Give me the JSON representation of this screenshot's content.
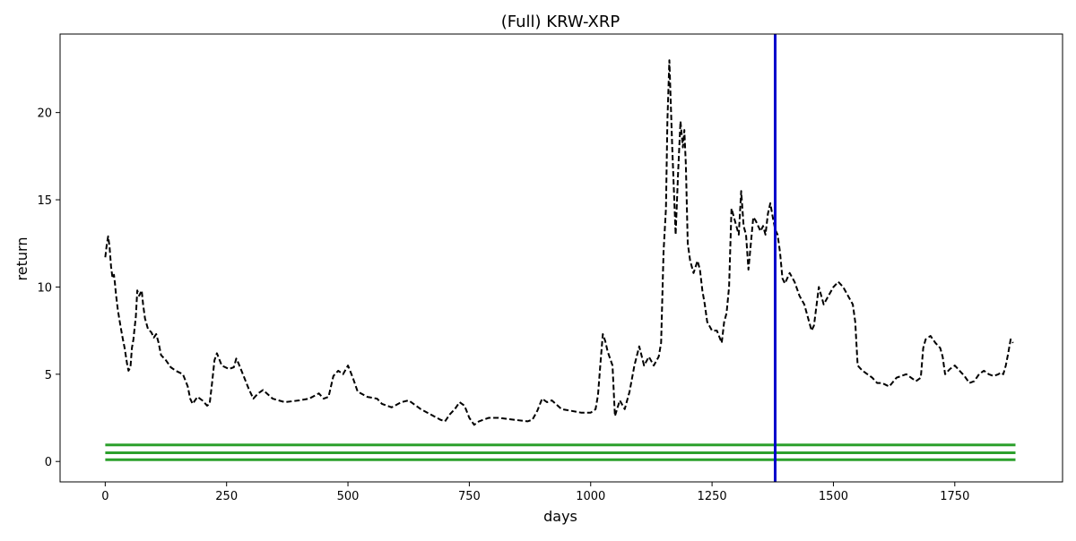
{
  "chart_data": {
    "type": "line",
    "title": "(Full) KRW-XRP",
    "xlabel": "days",
    "ylabel": "return",
    "xlim": [
      -93,
      1972
    ],
    "ylim": [
      -1.17,
      24.5
    ],
    "x_ticks": [
      0,
      250,
      500,
      750,
      1000,
      1250,
      1500,
      1750
    ],
    "y_ticks": [
      0,
      5,
      10,
      15,
      20
    ],
    "grid": false,
    "legend": "none",
    "series": [
      {
        "style": "dashed",
        "color": "#000000",
        "x": [
          0,
          3,
          6,
          9,
          12,
          15,
          18,
          20,
          22,
          26,
          30,
          35,
          40,
          45,
          48,
          52,
          55,
          58,
          60,
          63,
          66,
          70,
          75,
          78,
          82,
          88,
          95,
          100,
          105,
          110,
          115,
          125,
          135,
          145,
          160,
          170,
          175,
          180,
          190,
          200,
          210,
          215,
          220,
          225,
          230,
          240,
          255,
          265,
          270,
          275,
          285,
          295,
          305,
          315,
          325,
          345,
          370,
          400,
          420,
          440,
          450,
          460,
          470,
          480,
          490,
          500,
          510,
          520,
          540,
          560,
          570,
          590,
          610,
          625,
          650,
          670,
          690,
          700,
          710,
          720,
          730,
          740,
          750,
          760,
          770,
          790,
          810,
          840,
          870,
          880,
          890,
          900,
          910,
          920,
          940,
          960,
          980,
          1000,
          1010,
          1015,
          1020,
          1025,
          1030,
          1035,
          1040,
          1045,
          1050,
          1060,
          1070,
          1080,
          1090,
          1100,
          1110,
          1120,
          1130,
          1140,
          1145,
          1150,
          1155,
          1158,
          1162,
          1168,
          1175,
          1180,
          1185,
          1190,
          1193,
          1196,
          1200,
          1205,
          1212,
          1220,
          1225,
          1230,
          1235,
          1240,
          1250,
          1260,
          1270,
          1275,
          1280,
          1285,
          1290,
          1295,
          1300,
          1305,
          1310,
          1315,
          1320,
          1325,
          1330,
          1335,
          1340,
          1345,
          1350,
          1355,
          1360,
          1365,
          1370,
          1375,
          1380,
          1385,
          1390,
          1395,
          1400,
          1405,
          1410,
          1420,
          1430,
          1440,
          1450,
          1455,
          1460,
          1470,
          1475,
          1480,
          1490,
          1500,
          1510,
          1520,
          1530,
          1540,
          1545,
          1550,
          1560,
          1570,
          1580,
          1590,
          1600,
          1615,
          1630,
          1650,
          1660,
          1670,
          1680,
          1685,
          1690,
          1700,
          1710,
          1720,
          1725,
          1730,
          1740,
          1750,
          1760,
          1770,
          1780,
          1790,
          1800,
          1810,
          1820,
          1830,
          1840,
          1845,
          1850,
          1855,
          1860,
          1865,
          1870
        ],
        "y": [
          11.7,
          12.4,
          12.9,
          12.3,
          11.2,
          10.5,
          10.7,
          10.2,
          9.6,
          8.7,
          8.0,
          7.2,
          6.5,
          5.6,
          5.2,
          5.4,
          6.5,
          7.0,
          7.5,
          8.3,
          9.8,
          9.5,
          9.8,
          9.0,
          8.2,
          7.6,
          7.4,
          7.1,
          7.3,
          6.8,
          6.1,
          5.8,
          5.4,
          5.2,
          5.0,
          4.3,
          3.6,
          3.3,
          3.7,
          3.5,
          3.2,
          3.3,
          4.5,
          5.8,
          6.2,
          5.5,
          5.3,
          5.4,
          5.9,
          5.6,
          4.9,
          4.2,
          3.6,
          3.9,
          4.1,
          3.6,
          3.4,
          3.5,
          3.6,
          3.9,
          3.6,
          3.7,
          4.9,
          5.2,
          5.0,
          5.5,
          4.8,
          4.0,
          3.7,
          3.6,
          3.3,
          3.1,
          3.4,
          3.5,
          3.0,
          2.7,
          2.4,
          2.3,
          2.7,
          3.0,
          3.4,
          3.2,
          2.5,
          2.1,
          2.3,
          2.5,
          2.5,
          2.4,
          2.3,
          2.4,
          2.9,
          3.6,
          3.4,
          3.5,
          3.0,
          2.9,
          2.8,
          2.8,
          3.0,
          3.8,
          5.6,
          7.3,
          6.9,
          6.3,
          5.9,
          5.5,
          2.6,
          3.5,
          3.0,
          4.0,
          5.5,
          6.6,
          5.5,
          6.0,
          5.5,
          6.0,
          6.8,
          12.0,
          14.5,
          19.5,
          23.0,
          18.0,
          13.0,
          16.5,
          19.5,
          18.0,
          19.0,
          17.0,
          12.5,
          11.5,
          10.8,
          11.5,
          11.0,
          9.8,
          9.0,
          8.0,
          7.5,
          7.5,
          6.8,
          8.0,
          8.5,
          10.0,
          14.5,
          14.0,
          13.5,
          13.0,
          15.5,
          13.5,
          13.0,
          11.0,
          12.5,
          14.0,
          13.8,
          13.5,
          13.2,
          13.5,
          13.0,
          14.2,
          14.8,
          14.0,
          13.3,
          13.0,
          12.0,
          10.5,
          10.2,
          10.5,
          10.8,
          10.3,
          9.5,
          9.0,
          8.0,
          7.5,
          7.8,
          10.0,
          9.5,
          9.0,
          9.5,
          10.0,
          10.3,
          10.0,
          9.5,
          9.0,
          8.0,
          5.5,
          5.2,
          5.0,
          4.8,
          4.5,
          4.5,
          4.3,
          4.8,
          5.0,
          4.8,
          4.6,
          4.8,
          6.5,
          7.0,
          7.2,
          6.8,
          6.5,
          6.0,
          5.0,
          5.3,
          5.5,
          5.2,
          4.9,
          4.5,
          4.6,
          5.0,
          5.2,
          5.0,
          4.9,
          5.0,
          5.1,
          5.0,
          5.5,
          6.2,
          7.0,
          6.8
        ]
      },
      {
        "style": "solid",
        "color": "#2ca02c",
        "x": [
          0,
          1875
        ],
        "y": [
          0.95,
          0.95
        ]
      },
      {
        "style": "solid",
        "color": "#2ca02c",
        "x": [
          0,
          1875
        ],
        "y": [
          0.5,
          0.5
        ]
      },
      {
        "style": "solid",
        "color": "#2ca02c",
        "x": [
          0,
          1875
        ],
        "y": [
          0.1,
          0.1
        ]
      }
    ],
    "vlines": [
      {
        "x": 1380,
        "color": "#0000cc"
      }
    ]
  }
}
